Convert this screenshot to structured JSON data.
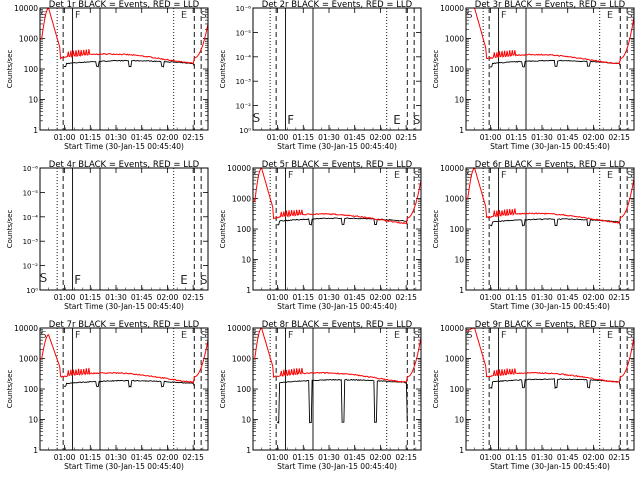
{
  "figure": {
    "x_tick_labels": [
      "01:00",
      "01:15",
      "01:30",
      "01:45",
      "02:00",
      "02:15"
    ],
    "xlabel": "Start Time (30-Jan-15 00:45:40)",
    "ylabel": "Counts/sec",
    "y_tick_labels_linear": [
      "1",
      "10",
      "100",
      "1000",
      "10000"
    ],
    "y_tick_labels_empty": [
      "10⁻⁶",
      "10⁻⁵",
      "10⁻⁴",
      "10⁻³",
      "10⁻²",
      "10⁰"
    ],
    "event_labels": [
      "S",
      "F",
      "E",
      "S"
    ],
    "colors": {
      "events": "#000000",
      "lld": "#ff0000",
      "frame": "#000000"
    }
  },
  "chart_data": [
    {
      "type": "line",
      "detector": "1r",
      "title": "Det 1r BLACK = Events, RED = LLD",
      "xlabel": "Start Time (30-Jan-15 00:45:40)",
      "ylabel": "Counts/sec",
      "yscale": "log",
      "ylim": [
        1,
        10000
      ],
      "has_data": true,
      "series": [
        {
          "name": "Events",
          "color": "#000000",
          "x": [],
          "y": []
        },
        {
          "name": "LLD",
          "color": "#ff0000",
          "x": [],
          "y": []
        }
      ],
      "profile": {
        "peak_red": 10000,
        "start_red": 1000,
        "plateau_red": 230,
        "plateau_black": 150,
        "dip_black": 120,
        "end_red": 3000
      }
    },
    {
      "type": "line",
      "detector": "2r",
      "title": "Det 2r BLACK = Events, RED = LLD",
      "xlabel": "Start Time (30-Jan-15 00:45:40)",
      "ylabel": "Counts/sec",
      "yscale": "log",
      "has_data": false,
      "series": []
    },
    {
      "type": "line",
      "detector": "3r",
      "title": "Det 3r BLACK = Events, RED = LLD",
      "xlabel": "Start Time (30-Jan-15 00:45:40)",
      "ylabel": "Counts/sec",
      "yscale": "log",
      "ylim": [
        1,
        10000
      ],
      "has_data": true,
      "series": [
        {
          "name": "Events",
          "color": "#000000",
          "x": [],
          "y": []
        },
        {
          "name": "LLD",
          "color": "#ff0000",
          "x": [],
          "y": []
        }
      ],
      "profile": {
        "peak_red": 10000,
        "start_red": 10000,
        "plateau_red": 220,
        "plateau_black": 150,
        "dip_black": 120,
        "end_red": 5000
      }
    },
    {
      "type": "line",
      "detector": "4r",
      "title": "Det 4r BLACK = Events, RED = LLD",
      "xlabel": "Start Time (30-Jan-15 00:45:40)",
      "ylabel": "Counts/sec",
      "yscale": "log",
      "has_data": false,
      "series": []
    },
    {
      "type": "line",
      "detector": "5r",
      "title": "Det 5r BLACK = Events, RED = LLD",
      "xlabel": "Start Time (30-Jan-15 00:45:40)",
      "ylabel": "Counts/sec",
      "yscale": "log",
      "ylim": [
        1,
        10000
      ],
      "has_data": true,
      "series": [
        {
          "name": "Events",
          "color": "#000000",
          "x": [],
          "y": []
        },
        {
          "name": "LLD",
          "color": "#ff0000",
          "x": [],
          "y": []
        }
      ],
      "profile": {
        "peak_red": 10000,
        "start_red": 800,
        "plateau_red": 230,
        "plateau_black": 180,
        "dip_black": 140,
        "end_red": 4000
      }
    },
    {
      "type": "line",
      "detector": "6r",
      "title": "Det 6r BLACK = Events, RED = LLD",
      "xlabel": "Start Time (30-Jan-15 00:45:40)",
      "ylabel": "Counts/sec",
      "yscale": "log",
      "ylim": [
        1,
        10000
      ],
      "has_data": true,
      "series": [
        {
          "name": "Events",
          "color": "#000000",
          "x": [],
          "y": []
        },
        {
          "name": "LLD",
          "color": "#ff0000",
          "x": [],
          "y": []
        }
      ],
      "profile": {
        "peak_red": 10000,
        "start_red": 1000,
        "plateau_red": 240,
        "plateau_black": 170,
        "dip_black": 130,
        "end_red": 4500
      }
    },
    {
      "type": "line",
      "detector": "7r",
      "title": "Det 7r BLACK = Events, RED = LLD",
      "xlabel": "Start Time (30-Jan-15 00:45:40)",
      "ylabel": "Counts/sec",
      "yscale": "log",
      "ylim": [
        1,
        10000
      ],
      "has_data": true,
      "series": [
        {
          "name": "Events",
          "color": "#000000",
          "x": [],
          "y": []
        },
        {
          "name": "LLD",
          "color": "#ff0000",
          "x": [],
          "y": []
        }
      ],
      "profile": {
        "peak_red": 6000,
        "start_red": 1000,
        "plateau_red": 250,
        "plateau_black": 150,
        "dip_black": 120,
        "end_red": 4000
      }
    },
    {
      "type": "line",
      "detector": "8r",
      "title": "Det 8r BLACK = Events, RED = LLD",
      "xlabel": "Start Time (30-Jan-15 00:45:40)",
      "ylabel": "Counts/sec",
      "yscale": "log",
      "ylim": [
        1,
        10000
      ],
      "has_data": true,
      "series": [
        {
          "name": "Events",
          "color": "#000000",
          "x": [],
          "y": []
        },
        {
          "name": "LLD",
          "color": "#ff0000",
          "x": [],
          "y": []
        }
      ],
      "profile": {
        "peak_red": 10000,
        "start_red": 1000,
        "plateau_red": 250,
        "plateau_black": 160,
        "dip_black": 8,
        "end_red": 5000
      }
    },
    {
      "type": "line",
      "detector": "9r",
      "title": "Det 9r BLACK = Events, RED = LLD",
      "xlabel": "Start Time (30-Jan-15 00:45:40)",
      "ylabel": "Counts/sec",
      "yscale": "log",
      "ylim": [
        1,
        10000
      ],
      "has_data": true,
      "series": [
        {
          "name": "Events",
          "color": "#000000",
          "x": [],
          "y": []
        },
        {
          "name": "LLD",
          "color": "#ff0000",
          "x": [],
          "y": []
        }
      ],
      "profile": {
        "peak_red": 10000,
        "start_red": 8000,
        "plateau_red": 250,
        "plateau_black": 170,
        "dip_black": 110,
        "end_red": 5000
      }
    }
  ]
}
